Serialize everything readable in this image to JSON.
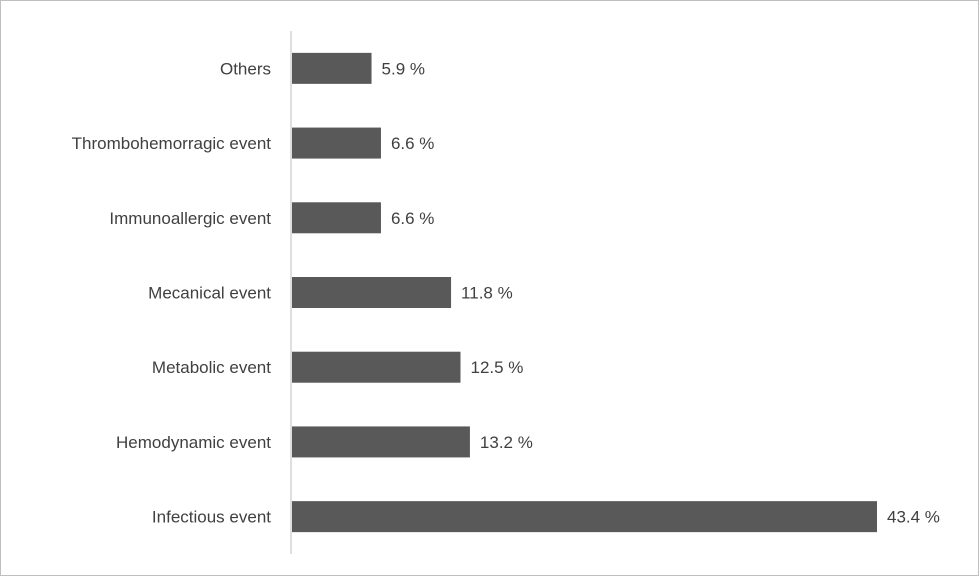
{
  "chart_data": {
    "type": "bar",
    "orientation": "horizontal",
    "title": "",
    "xlabel": "",
    "ylabel": "",
    "categories": [
      "Infectious event",
      "Hemodynamic event",
      "Metabolic event",
      "Mecanical event",
      "Immunoallergic event",
      "Thrombohemorragic event",
      "Others"
    ],
    "values": [
      43.4,
      13.2,
      12.5,
      11.8,
      6.6,
      6.6,
      5.9
    ],
    "value_labels": [
      "43.4 %",
      "13.2 %",
      "12.5 %",
      "11.8 %",
      "6.6 %",
      "6.6 %",
      "5.9 %"
    ],
    "xlim": [
      0,
      45
    ],
    "grid": false,
    "legend": "none",
    "bar_color": "#595959"
  }
}
